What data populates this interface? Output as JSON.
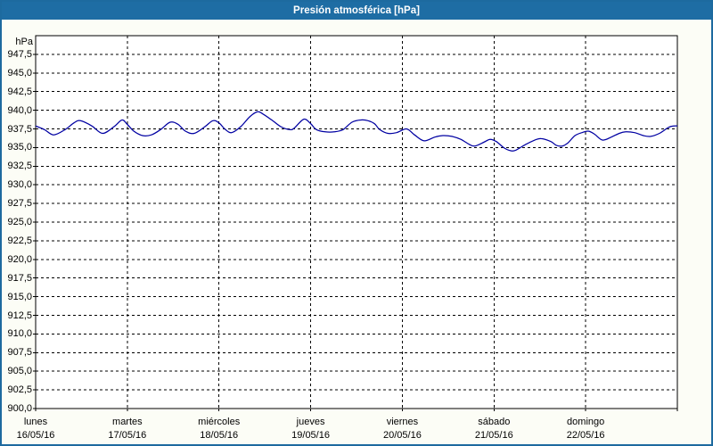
{
  "title": "Presión atmosférica [hPa]",
  "colors": {
    "titlebar": "#1e6da4",
    "window_border": "#1d6a9f",
    "background": "#fcfdf6",
    "plot_background": "#ffffff",
    "line": "#0000a2",
    "grid": "#000000",
    "text": "#000000",
    "title_text": "#ffffff"
  },
  "chart_data": {
    "type": "line",
    "title": "Presión atmosférica [hPa]",
    "y_unit": "hPa",
    "ylabel": "hPa",
    "ylim": [
      900,
      950
    ],
    "y_tick_labels": [
      "947,5",
      "945,0",
      "942,5",
      "940,0",
      "937,5",
      "935,0",
      "932,5",
      "930,0",
      "927,5",
      "925,0",
      "922,5",
      "920,0",
      "917,5",
      "915,0",
      "912,5",
      "910,0",
      "907,5",
      "905,0",
      "902,5",
      "900,0"
    ],
    "x_days": [
      {
        "name": "lunes",
        "date": "16/05/16"
      },
      {
        "name": "martes",
        "date": "17/05/16"
      },
      {
        "name": "miércoles",
        "date": "18/05/16"
      },
      {
        "name": "jueves",
        "date": "19/05/16"
      },
      {
        "name": "viernes",
        "date": "20/05/16"
      },
      {
        "name": "sábado",
        "date": "21/05/16"
      },
      {
        "name": "domingo",
        "date": "22/05/16"
      }
    ],
    "x_range_hours": 168,
    "grid": "dashed",
    "legend": "none",
    "series": [
      {
        "name": "Presión atmosférica",
        "color": "#0000a2",
        "points_hours_hpa": [
          [
            0,
            937.9
          ],
          [
            2.3,
            937.4
          ],
          [
            4.7,
            936.7
          ],
          [
            7.7,
            937.4
          ],
          [
            10,
            938.3
          ],
          [
            11.7,
            938.6
          ],
          [
            14.7,
            937.9
          ],
          [
            17.5,
            936.9
          ],
          [
            20.5,
            937.8
          ],
          [
            22.6,
            938.7
          ],
          [
            24,
            938.1
          ],
          [
            25.7,
            937.2
          ],
          [
            28,
            936.6
          ],
          [
            30.3,
            936.7
          ],
          [
            32.7,
            937.4
          ],
          [
            35.2,
            938.4
          ],
          [
            37.3,
            938.1
          ],
          [
            39.2,
            937.2
          ],
          [
            41.5,
            936.9
          ],
          [
            44.3,
            937.8
          ],
          [
            46.4,
            938.6
          ],
          [
            48,
            938.3
          ],
          [
            49.7,
            937.4
          ],
          [
            51.3,
            937
          ],
          [
            53.7,
            937.8
          ],
          [
            56,
            939.1
          ],
          [
            58.1,
            939.8
          ],
          [
            59.5,
            939.5
          ],
          [
            61.8,
            938.7
          ],
          [
            64.2,
            937.8
          ],
          [
            66.5,
            937.4
          ],
          [
            67.7,
            937.6
          ],
          [
            70.2,
            938.8
          ],
          [
            72,
            938.2
          ],
          [
            73.5,
            937.4
          ],
          [
            75.8,
            937.1
          ],
          [
            78.2,
            937.1
          ],
          [
            80.5,
            937.4
          ],
          [
            82.8,
            938.4
          ],
          [
            85.2,
            938.7
          ],
          [
            87,
            938.6
          ],
          [
            88.7,
            938.2
          ],
          [
            90.1,
            937.4
          ],
          [
            92.2,
            936.9
          ],
          [
            94.5,
            937
          ],
          [
            97.1,
            937.5
          ],
          [
            99.2,
            936.7
          ],
          [
            101.7,
            935.9
          ],
          [
            104.5,
            936.4
          ],
          [
            106.6,
            936.6
          ],
          [
            109,
            936.5
          ],
          [
            111.3,
            936.1
          ],
          [
            113.6,
            935.4
          ],
          [
            115,
            935.2
          ],
          [
            117.3,
            935.7
          ],
          [
            119,
            936.1
          ],
          [
            120.6,
            935.8
          ],
          [
            122.5,
            935
          ],
          [
            124.1,
            934.6
          ],
          [
            125.5,
            934.6
          ],
          [
            127.9,
            935.3
          ],
          [
            130.2,
            935.9
          ],
          [
            132.3,
            936.2
          ],
          [
            134.9,
            935.8
          ],
          [
            136.3,
            935.3
          ],
          [
            137.9,
            935.2
          ],
          [
            139.3,
            935.6
          ],
          [
            141.2,
            936.6
          ],
          [
            143,
            937
          ],
          [
            144.7,
            937.2
          ],
          [
            146.3,
            936.8
          ],
          [
            148.4,
            936
          ],
          [
            150.7,
            936.4
          ],
          [
            152.8,
            936.9
          ],
          [
            154.5,
            937.1
          ],
          [
            156.8,
            937
          ],
          [
            159.1,
            936.6
          ],
          [
            161,
            936.5
          ],
          [
            163.3,
            936.9
          ],
          [
            165.7,
            937.7
          ],
          [
            167.1,
            937.9
          ],
          [
            168,
            937.9
          ]
        ]
      }
    ]
  }
}
